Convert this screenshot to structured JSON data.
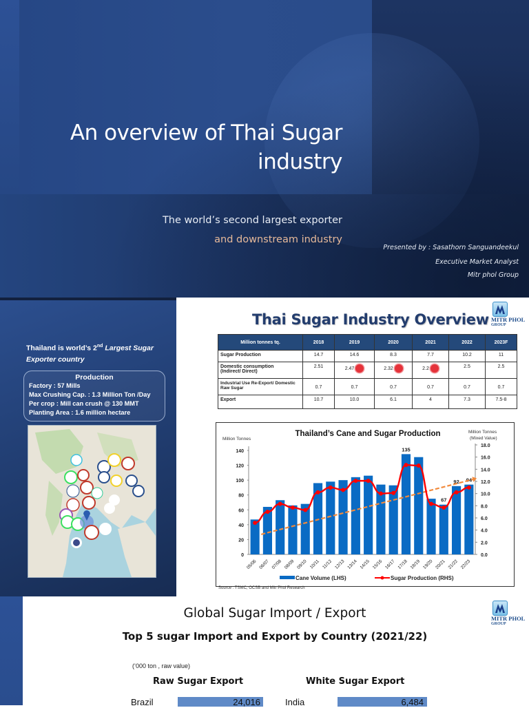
{
  "slide1": {
    "title_line1": "An overview of Thai Sugar",
    "title_line2": "industry",
    "subtitle_line1": "The world’s second largest exporter",
    "subtitle_line2": "and downstream industry",
    "presenter": "Presented by : Sasathorn Sanguandeekul",
    "role": "Executive Market Analyst",
    "company": "Mitr phol Group",
    "colors": {
      "background": "#233f74",
      "subtitle_accent": "#e6b99a"
    }
  },
  "slide2": {
    "left": {
      "heading_pre": "Thailand is world’s 2",
      "heading_sup": "nd",
      "heading_italic": "Largest Sugar Exporter country",
      "production_title": "Production",
      "production_lines": [
        "Factory : 57 Mills",
        "Max Crushing Cap. : 1.3 Million Ton /Day",
        "Per crop : Mill can crush @ 130   MMT",
        "Planting Area : 1.6 million hectare"
      ],
      "map_label": "Map of Thailand sugar mill locations"
    },
    "title": "Thai Sugar Industry Overview",
    "logo": {
      "line1": "MITR PHOL",
      "line2": "GROUP"
    },
    "table": {
      "headers": [
        "Million tonnes  tq.",
        "2018",
        "2019",
        "2020",
        "2021",
        "2022",
        "2023F"
      ],
      "rows": [
        {
          "label": "Sugar Production",
          "values": [
            "14.7",
            "14.6",
            "8.3",
            "7.7",
            "10.2",
            "11"
          ]
        },
        {
          "label": "Domestic consumption (Indirect/ Direct)",
          "values": [
            "2.51",
            "2.47",
            "2.32",
            "2.2",
            "2.5",
            "2.5"
          ]
        },
        {
          "label": "Industrial Use Re-Export/ Domestic Raw Sugar",
          "values": [
            "0.7",
            "0.7",
            "0.7",
            "0.7",
            "0.7",
            "0.7"
          ]
        },
        {
          "label": "Export",
          "values": [
            "10.7",
            "10.0",
            "6.1",
            "4",
            "7.3",
            "7.5-8"
          ]
        }
      ]
    },
    "source": "Source :   TSMC, OCSB and Mitr Phol Research"
  },
  "chart_data": {
    "type": "bar",
    "title": "Thailand’s Cane and Sugar Production",
    "ylabel": "Million Tonnes",
    "y2label": "Million Tonnes (Mixed Value)",
    "ylim": [
      0,
      140
    ],
    "y2lim": [
      0,
      18
    ],
    "yticks": [
      0,
      20,
      40,
      60,
      80,
      100,
      120,
      140
    ],
    "y2ticks": [
      "0.0",
      "2.0",
      "4.0",
      "6.0",
      "8.0",
      "10.0",
      "12.0",
      "14.0",
      "16.0",
      "18.0"
    ],
    "categories": [
      "05/06",
      "06/07",
      "07/08",
      "08/09",
      "09/10",
      "10/11",
      "11/12",
      "12/13",
      "13/14",
      "14/15",
      "15/16",
      "16/17",
      "17/18",
      "18/19",
      "19/20",
      "20/21",
      "21/22",
      "22/23"
    ],
    "series": [
      {
        "name": "Cane Volume (LHS)",
        "type": "bar",
        "color": "#0a6bc4",
        "values": [
          47,
          64,
          73,
          66,
          68,
          96,
          98,
          100,
          104,
          106,
          94,
          93,
          135,
          131,
          75,
          67,
          92,
          94
        ]
      },
      {
        "name": "Sugar Production (RHS)",
        "type": "line",
        "color": "#ff0000",
        "values": [
          5.2,
          7.0,
          8.3,
          7.7,
          7.3,
          10.2,
          11.0,
          10.6,
          12.1,
          12.1,
          10.0,
          10.1,
          14.7,
          14.6,
          8.3,
          7.7,
          10.2,
          11.0
        ]
      }
    ],
    "trendline": {
      "color": "#f28a3c",
      "style": "dashed-arrow",
      "from": [
        1,
        27
      ],
      "to": [
        17,
        101
      ]
    },
    "data_labels": [
      {
        "category": "17/18",
        "value": 135
      },
      {
        "category": "20/21",
        "value": 67
      },
      {
        "category": "21/22",
        "value": 92
      },
      {
        "category": "22/23",
        "value": 94
      }
    ],
    "legend_position": "bottom"
  },
  "slide3": {
    "title": "Global  Sugar Import / Export",
    "subtitle": "Top 5 sugar Import and Export by Country (2021/22)",
    "unit_note": "(‘000 ton , raw value)",
    "raw_export": {
      "heading": "Raw Sugar Export",
      "rows": [
        {
          "country": "Brazil",
          "value": "24,016"
        }
      ]
    },
    "white_export": {
      "heading": "White Sugar Export",
      "rows": [
        {
          "country": "India",
          "value": "6,484"
        }
      ]
    },
    "logo": {
      "line1": "MITR PHOL",
      "line2": "GROUP"
    }
  }
}
